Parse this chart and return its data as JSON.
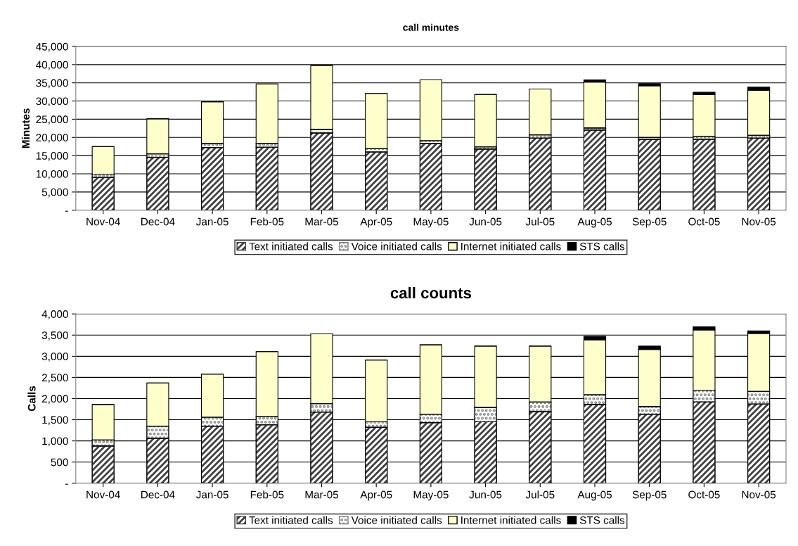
{
  "chart_data": [
    {
      "type": "bar",
      "title": "call minutes",
      "ylabel": "Minutes",
      "stacked": true,
      "grid": "y",
      "legend": "bottom",
      "categories": [
        "Nov-04",
        "Dec-04",
        "Jan-05",
        "Feb-05",
        "Mar-05",
        "Apr-05",
        "May-05",
        "Jun-05",
        "Jul-05",
        "Aug-05",
        "Sep-05",
        "Oct-05",
        "Nov-05"
      ],
      "ylim": [
        0,
        45000
      ],
      "yticks": [
        {
          "value": 0,
          "label": "-"
        },
        {
          "value": 5000,
          "label": "5,000"
        },
        {
          "value": 10000,
          "label": "10,000"
        },
        {
          "value": 15000,
          "label": "15,000"
        },
        {
          "value": 20000,
          "label": "20,000"
        },
        {
          "value": 25000,
          "label": "25,000"
        },
        {
          "value": 30000,
          "label": "30,000"
        },
        {
          "value": 35000,
          "label": "35,000"
        },
        {
          "value": 40000,
          "label": "40,000"
        },
        {
          "value": 45000,
          "label": "45,000"
        }
      ],
      "series": [
        {
          "name": "Text initiated calls",
          "color": "#404040",
          "values": [
            9000,
            14500,
            17200,
            17300,
            21200,
            16000,
            18300,
            16800,
            19800,
            22000,
            19500,
            19500,
            19800
          ]
        },
        {
          "name": "Voice initiated calls",
          "color": "#808080",
          "values": [
            900,
            1000,
            1100,
            1100,
            1000,
            900,
            800,
            600,
            900,
            600,
            500,
            800,
            800
          ]
        },
        {
          "name": "Internet initiated calls",
          "color": "#ffffcc",
          "values": [
            7600,
            9600,
            11500,
            16300,
            17600,
            15200,
            16700,
            14400,
            12600,
            12600,
            14200,
            11500,
            12300
          ]
        },
        {
          "name": "STS calls",
          "color": "#000000",
          "values": [
            0,
            0,
            0,
            0,
            0,
            0,
            0,
            0,
            0,
            600,
            600,
            600,
            900
          ]
        }
      ]
    },
    {
      "type": "bar",
      "title": "call counts",
      "ylabel": "Calls",
      "stacked": true,
      "grid": "y",
      "legend": "bottom",
      "categories": [
        "Nov-04",
        "Dec-04",
        "Jan-05",
        "Feb-05",
        "Mar-05",
        "Apr-05",
        "May-05",
        "Jun-05",
        "Jul-05",
        "Aug-05",
        "Sep-05",
        "Oct-05",
        "Nov-05"
      ],
      "ylim": [
        0,
        4000
      ],
      "yticks": [
        {
          "value": 0,
          "label": "-"
        },
        {
          "value": 500,
          "label": "500"
        },
        {
          "value": 1000,
          "label": "1,000"
        },
        {
          "value": 1500,
          "label": "1,500"
        },
        {
          "value": 2000,
          "label": "2,000"
        },
        {
          "value": 2500,
          "label": "2,500"
        },
        {
          "value": 3000,
          "label": "3,000"
        },
        {
          "value": 3500,
          "label": "3,500"
        },
        {
          "value": 4000,
          "label": "4,000"
        }
      ],
      "series": [
        {
          "name": "Text initiated calls",
          "color": "#404040",
          "values": [
            880,
            1060,
            1350,
            1380,
            1680,
            1320,
            1430,
            1450,
            1690,
            1860,
            1630,
            1920,
            1870
          ]
        },
        {
          "name": "Voice initiated calls",
          "color": "#808080",
          "values": [
            140,
            290,
            210,
            200,
            200,
            130,
            200,
            340,
            230,
            230,
            180,
            280,
            300
          ]
        },
        {
          "name": "Internet initiated calls",
          "color": "#ffffcc",
          "values": [
            840,
            1020,
            1020,
            1530,
            1650,
            1460,
            1640,
            1450,
            1320,
            1300,
            1350,
            1420,
            1370
          ]
        },
        {
          "name": "STS calls",
          "color": "#000000",
          "values": [
            0,
            0,
            0,
            0,
            0,
            0,
            0,
            0,
            0,
            80,
            80,
            80,
            60
          ]
        }
      ]
    }
  ]
}
